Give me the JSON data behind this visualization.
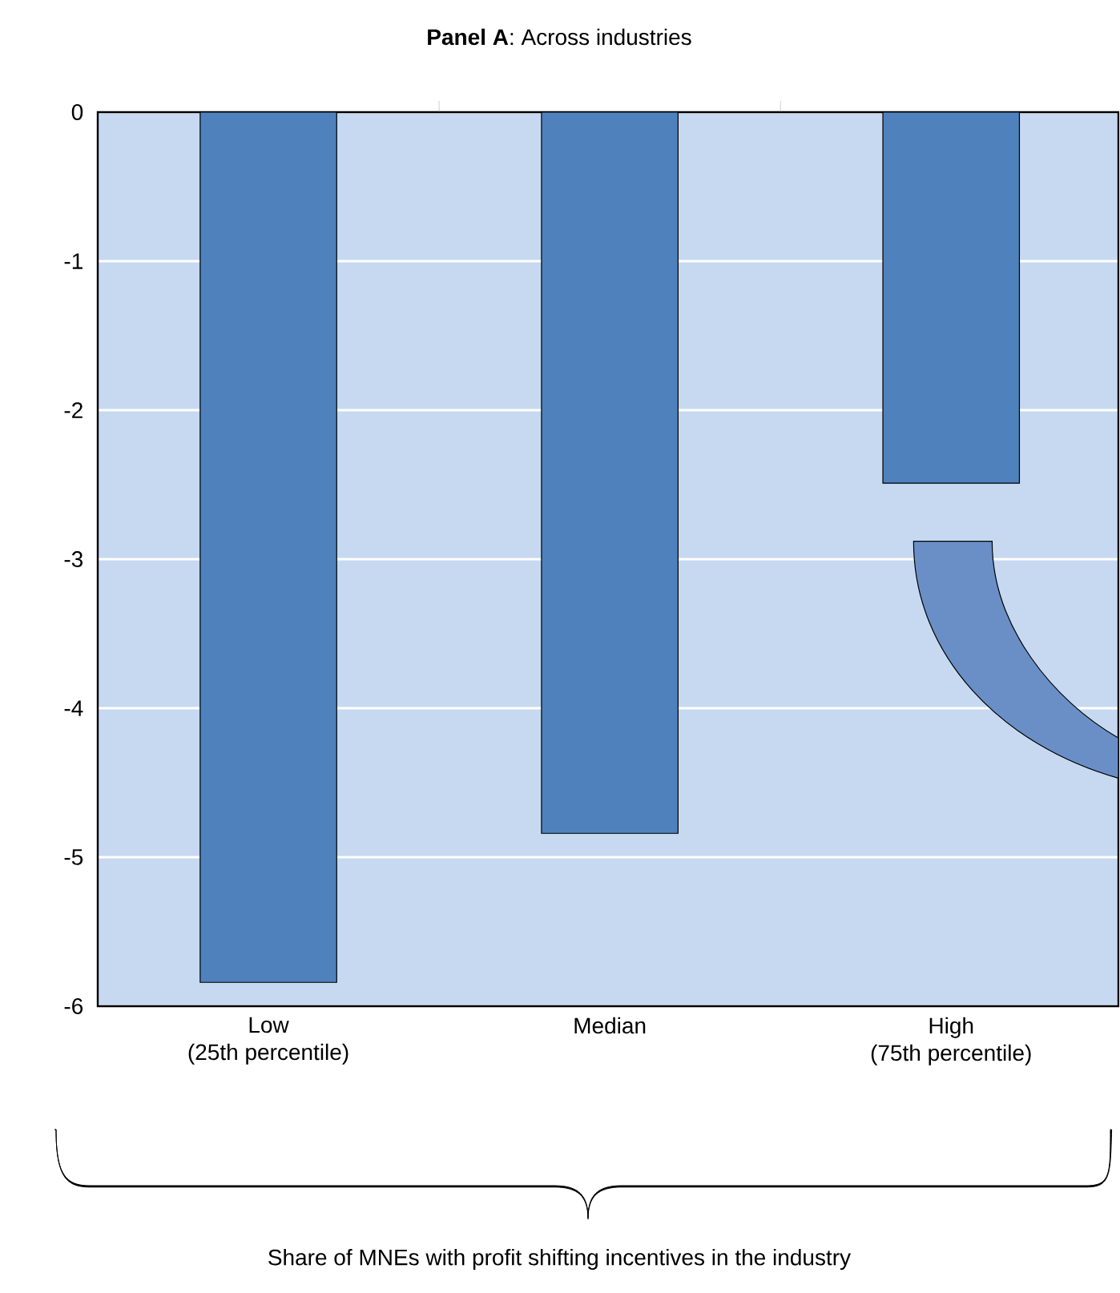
{
  "chart_data": {
    "type": "bar",
    "title": "**Panel A**: Across industries",
    "categories": [
      "Low\n(25th percentile)",
      "Median",
      "High\n(75th percentile)"
    ],
    "values": [
      -5.84,
      -4.84,
      -2.49
    ],
    "color": "#4f81bd",
    "ylim": [
      -6,
      0
    ],
    "yticks": [
      -6,
      -5,
      -4,
      -3,
      -2,
      -1,
      0
    ],
    "grid": "y",
    "annotations": [
      "Share of MNEs with profit shifting incentives in the industry"
    ]
  }
}
